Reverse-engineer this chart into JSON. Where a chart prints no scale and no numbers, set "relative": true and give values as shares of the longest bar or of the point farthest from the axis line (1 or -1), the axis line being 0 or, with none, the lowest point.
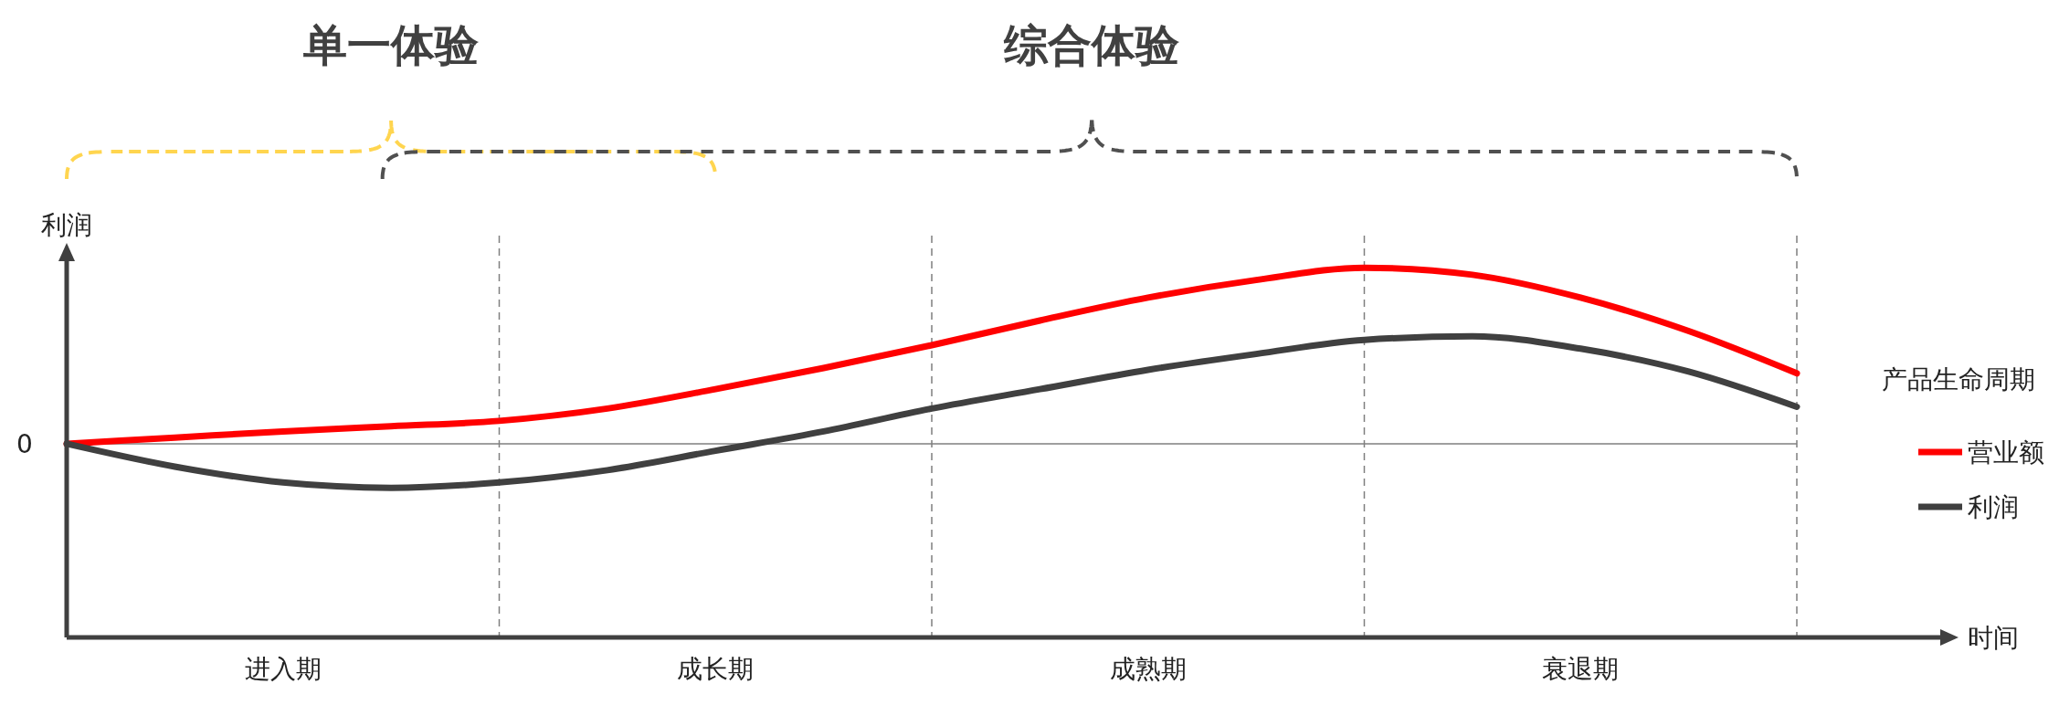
{
  "chart_data": {
    "type": "line",
    "relative": true,
    "annotations": [
      "单一体验",
      "综合体验",
      "时间"
    ],
    "ylabel": "利润",
    "legend_title": "产品生命周期",
    "legend": "right",
    "line_style": "solid",
    "categories": [
      null,
      null,
      "进入期",
      null,
      null,
      null,
      "成长期",
      null,
      null,
      null,
      "成熟期",
      null,
      null,
      null,
      "衰退期",
      null,
      null
    ],
    "grid": "x",
    "ref_lines": [
      {
        "axis": "y",
        "value": 0,
        "label": "0",
        "color": "#7f7f7f",
        "line_style": "solid"
      }
    ],
    "series": [
      {
        "name": "营业额",
        "color": "#ff0000",
        "values": [
          0,
          0.035,
          0.07,
          0.1,
          0.13,
          0.2,
          0.31,
          0.43,
          0.56,
          0.7,
          0.83,
          0.93,
          1,
          0.96,
          0.83,
          0.64,
          0.4
        ]
      },
      {
        "name": "利润",
        "color": "#404040",
        "values": [
          0,
          -0.13,
          -0.22,
          -0.25,
          -0.22,
          -0.15,
          -0.04,
          0.07,
          0.2,
          0.31,
          0.42,
          0.51,
          0.59,
          0.61,
          0.54,
          0.41,
          0.21
        ]
      }
    ]
  }
}
